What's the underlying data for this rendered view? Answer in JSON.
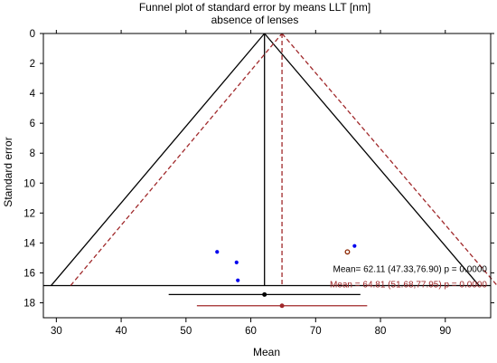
{
  "chart_data": {
    "type": "scatter",
    "title": "Funnel plot of standard error by means LLT [nm]",
    "subtitle": "absence of lenses",
    "xlabel": "Mean",
    "ylabel": "Standard error",
    "xlim": [
      28,
      97
    ],
    "ylim": [
      0,
      19
    ],
    "y_inverted": true,
    "x_ticks": [
      "30",
      "40",
      "50",
      "60",
      "70",
      "80",
      "90"
    ],
    "y_ticks": [
      "0",
      "2",
      "4",
      "6",
      "8",
      "10",
      "12",
      "14",
      "16",
      "18"
    ],
    "grid": false,
    "series": [
      {
        "color": "#0000ee",
        "points": [
          [
            54.8,
            14.6
          ],
          [
            57.8,
            15.3
          ],
          [
            58.0,
            16.5
          ],
          [
            76.0,
            14.2
          ]
        ]
      },
      {
        "color": "#8b2500",
        "points": [
          [
            74.9,
            14.6
          ]
        ]
      }
    ],
    "funnels": [
      {
        "center": 62.11,
        "apex_se": 0,
        "base_se": 16.85,
        "base_x": [
          29.2,
          95.2
        ],
        "color": "#000000",
        "style": "solid"
      },
      {
        "center": 64.81,
        "apex_se": 0,
        "base_se": 16.85,
        "base_x": [
          32.2,
          98.0
        ],
        "color": "#a0282a",
        "style": "dashed"
      }
    ],
    "summary_estimates": [
      {
        "label": "Mean= 62.11 (47.33,76.90) p = 0.0000",
        "mean": 62.11,
        "ci": [
          47.33,
          76.9
        ],
        "y": 17.45,
        "color": "#000000"
      },
      {
        "label": "Mean = 64.81 (51.68,77.95) p = 0.0000",
        "mean": 64.81,
        "ci": [
          51.68,
          77.95
        ],
        "y": 18.2,
        "color": "#a0282a"
      }
    ]
  }
}
